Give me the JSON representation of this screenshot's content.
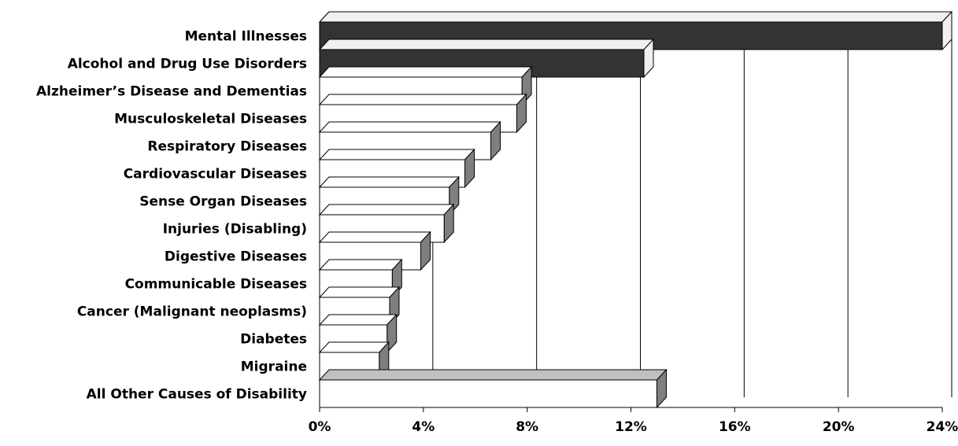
{
  "chart_data": {
    "type": "bar",
    "orientation": "horizontal",
    "style": "3d",
    "categories": [
      "Mental Illnesses",
      "Alcohol and Drug Use Disorders",
      "Alzheimer’s Disease and Dementias",
      "Musculoskeletal Diseases",
      "Respiratory Diseases",
      "Cardiovascular Diseases",
      "Sense Organ Diseases",
      "Injuries (Disabling)",
      "Digestive Diseases",
      "Communicable Diseases",
      "Cancer (Malignant neoplasms)",
      "Diabetes",
      "Migraine",
      "All Other Causes of Disability"
    ],
    "values": [
      24.0,
      12.5,
      7.8,
      7.6,
      6.6,
      5.6,
      5.0,
      4.8,
      3.9,
      2.8,
      2.7,
      2.6,
      2.3,
      13.0
    ],
    "highlighted": [
      true,
      true,
      false,
      false,
      false,
      false,
      false,
      false,
      false,
      false,
      false,
      false,
      false,
      false
    ],
    "xlim": [
      0,
      24
    ],
    "xticks": [
      "0%",
      "4%",
      "8%",
      "12%",
      "16%",
      "20%",
      "24%"
    ],
    "xtick_values": [
      0,
      4,
      8,
      12,
      16,
      20,
      24
    ],
    "grid": true,
    "legend": "none",
    "colors": {
      "highlight_face": "#333333",
      "highlight_side": "#f0f0f0",
      "normal_face": "#ffffff",
      "normal_side": "#7f7f7f",
      "other_top": "#c0c0c0",
      "outline": "#000000"
    }
  }
}
